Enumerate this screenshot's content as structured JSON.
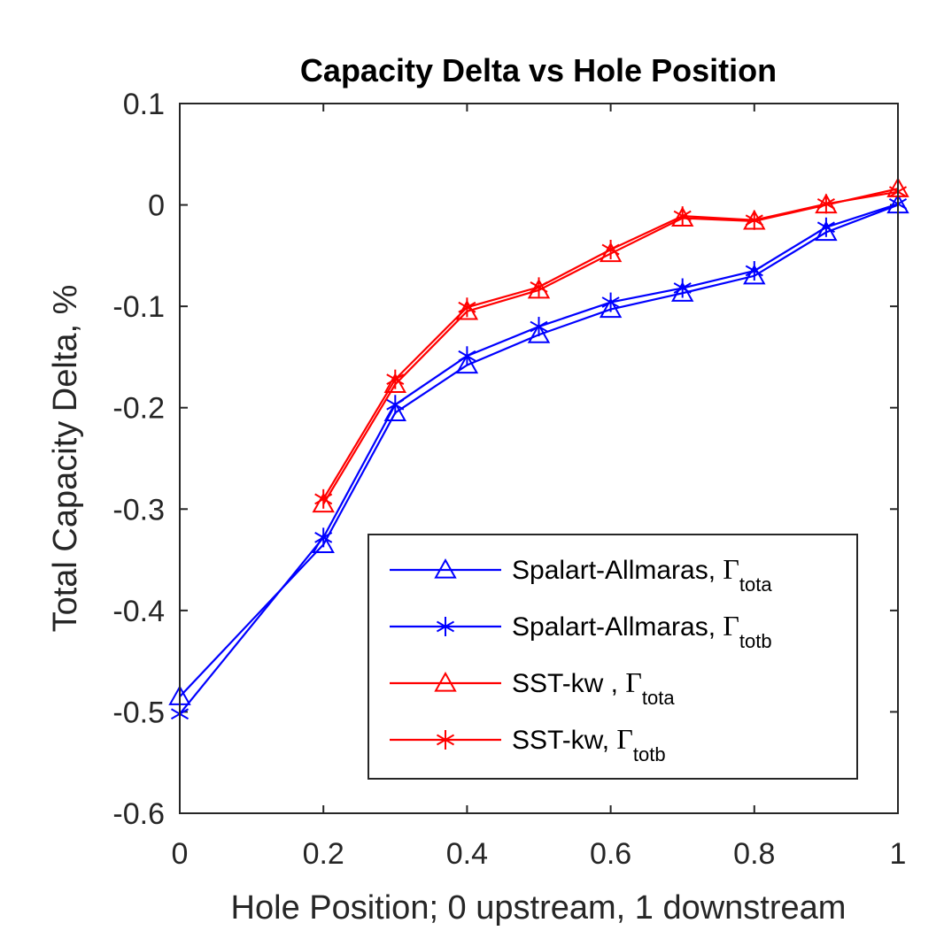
{
  "chart_data": {
    "type": "line",
    "title": "Capacity Delta vs Hole Position",
    "xlabel": "Hole Position; 0 upstream, 1 downstream",
    "ylabel": "Total Capacity Delta, %",
    "xlim": [
      0,
      1
    ],
    "ylim": [
      -0.6,
      0.1
    ],
    "xticks": [
      0,
      0.2,
      0.4,
      0.6,
      0.8,
      1
    ],
    "xtick_labels": [
      "0",
      "0.2",
      "0.4",
      "0.6",
      "0.8",
      "1"
    ],
    "yticks": [
      0.1,
      0,
      -0.1,
      -0.2,
      -0.3,
      -0.4,
      -0.5,
      -0.6
    ],
    "ytick_labels": [
      "0.1",
      "0",
      "-0.1",
      "-0.2",
      "-0.3",
      "-0.4",
      "-0.5",
      "-0.6"
    ],
    "grid": false,
    "legend_position": "bottom-right",
    "series": [
      {
        "name": "Spalart-Allmaras, Γtota",
        "legend_text": "Spalart-Allmaras,",
        "legend_symbol": "Γ",
        "legend_sub": "tota",
        "color": "#0000ff",
        "marker": "triangle",
        "x": [
          0,
          0.2,
          0.3,
          0.4,
          0.5,
          0.6,
          0.7,
          0.8,
          0.9,
          1.0
        ],
        "y": [
          -0.485,
          -0.335,
          -0.205,
          -0.158,
          -0.128,
          -0.103,
          -0.087,
          -0.07,
          -0.027,
          0.0
        ]
      },
      {
        "name": "Spalart-Allmaras, Γtotb",
        "legend_text": "Spalart-Allmaras,",
        "legend_symbol": "Γ",
        "legend_sub": "totb",
        "color": "#0000ff",
        "marker": "asterisk",
        "x": [
          0,
          0.2,
          0.3,
          0.4,
          0.5,
          0.6,
          0.7,
          0.8,
          0.9,
          1.0
        ],
        "y": [
          -0.502,
          -0.328,
          -0.197,
          -0.149,
          -0.12,
          -0.096,
          -0.082,
          -0.065,
          -0.022,
          0.001
        ]
      },
      {
        "name": "SST-kw , Γtota",
        "legend_text": "SST-kw ,",
        "legend_symbol": "Γ",
        "legend_sub": "tota",
        "color": "#ff0000",
        "marker": "triangle",
        "x": [
          0.2,
          0.3,
          0.4,
          0.5,
          0.6,
          0.7,
          0.8,
          0.9,
          1.0
        ],
        "y": [
          -0.295,
          -0.177,
          -0.105,
          -0.084,
          -0.048,
          -0.013,
          -0.016,
          0.0,
          0.016
        ]
      },
      {
        "name": "SST-kw, Γtotb",
        "legend_text": "SST-kw,",
        "legend_symbol": "Γ",
        "legend_sub": "totb",
        "color": "#ff0000",
        "marker": "asterisk",
        "x": [
          0.2,
          0.3,
          0.4,
          0.5,
          0.6,
          0.7,
          0.8,
          0.9,
          1.0
        ],
        "y": [
          -0.29,
          -0.172,
          -0.101,
          -0.081,
          -0.044,
          -0.011,
          -0.015,
          0.001,
          0.013
        ]
      }
    ]
  }
}
